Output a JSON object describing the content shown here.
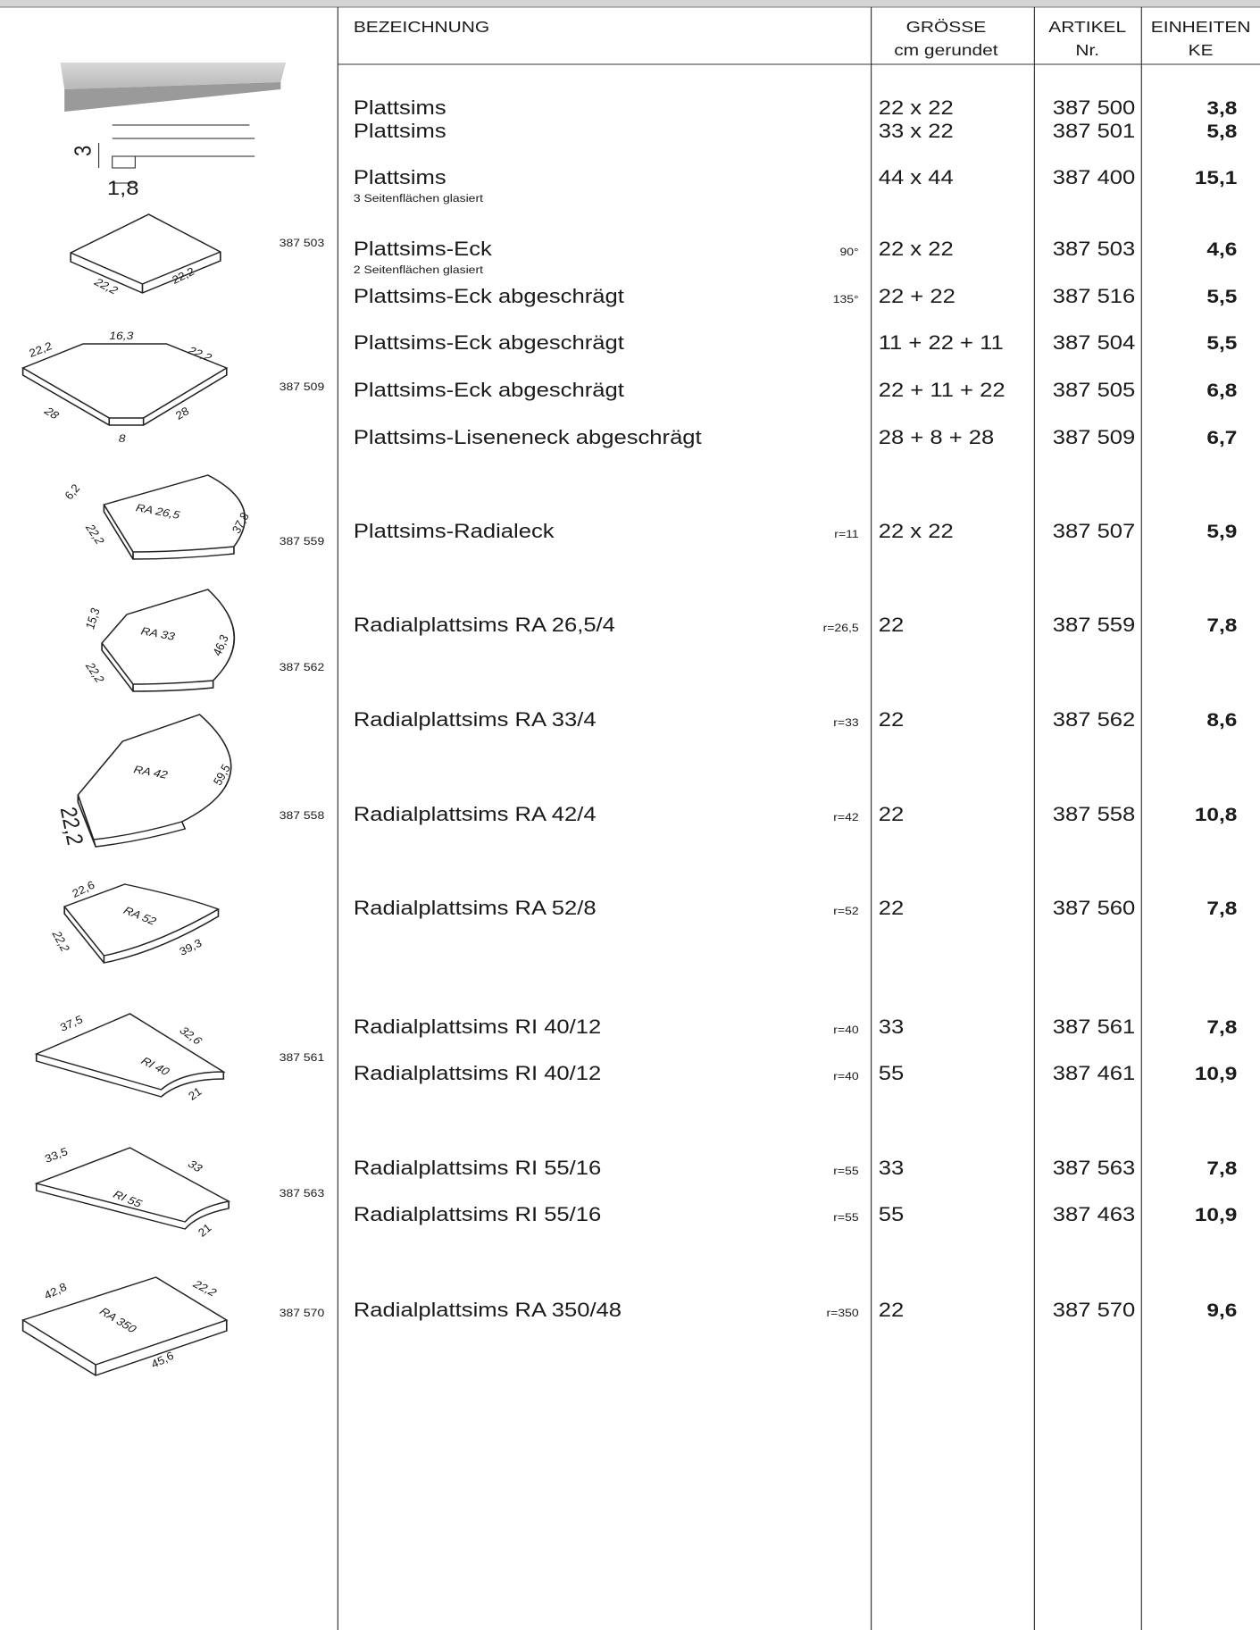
{
  "header": {
    "bezeichnung": "BEZEICHNUNG",
    "groesse": "GRÖSSE",
    "groesse_sub": "cm gerundet",
    "artikel": "ARTIKEL",
    "artikel_sub": "Nr.",
    "einheiten": "EINHEITEN",
    "einheiten_sub": "KE"
  },
  "rows": [
    {
      "name": "Plattsims",
      "size": "22 x 22",
      "article": "387 500",
      "ke": "3,8"
    },
    {
      "name": "Plattsims",
      "size": "33 x 22",
      "article": "387 501",
      "ke": "5,8"
    },
    {
      "name": "Plattsims",
      "note": "3 Seitenflächen glasiert",
      "size": "44 x 44",
      "article": "387 400",
      "ke": "15,1"
    },
    {
      "name": "Plattsims-Eck",
      "note": "2 Seitenflächen glasiert",
      "angle": "90°",
      "size": "22 x 22",
      "article": "387 503",
      "ke": "4,6"
    },
    {
      "name": "Plattsims-Eck abgeschrägt",
      "angle": "135°",
      "size": "22 + 22",
      "article": "387 516",
      "ke": "5,5"
    },
    {
      "name": "Plattsims-Eck abgeschrägt",
      "size": "11 + 22 + 11",
      "article": "387 504",
      "ke": "5,5"
    },
    {
      "name": "Plattsims-Eck abgeschrägt",
      "size": "22 + 11 + 22",
      "article": "387 505",
      "ke": "6,8"
    },
    {
      "name": "Plattsims-Liseneneck abgeschrägt",
      "size": "28 + 8 + 28",
      "article": "387 509",
      "ke": "6,7"
    },
    {
      "name": "Plattsims-Radialeck",
      "angle": "r=11",
      "size": "22 x 22",
      "article": "387 507",
      "ke": "5,9"
    },
    {
      "name": "Radialplattsims RA 26,5/4",
      "angle": "r=26,5",
      "size": "22",
      "article": "387 559",
      "ke": "7,8"
    },
    {
      "name": "Radialplattsims RA 33/4",
      "angle": "r=33",
      "size": "22",
      "article": "387 562",
      "ke": "8,6"
    },
    {
      "name": "Radialplattsims RA 42/4",
      "angle": "r=42",
      "size": "22",
      "article": "387 558",
      "ke": "10,8"
    },
    {
      "name": "Radialplattsims RA 52/8",
      "angle": "r=52",
      "size": "22",
      "article": "387 560",
      "ke": "7,8"
    },
    {
      "name": "Radialplattsims RI 40/12",
      "angle": "r=40",
      "size": "33",
      "article": "387 561",
      "ke": "7,8"
    },
    {
      "name": "Radialplattsims RI 40/12",
      "angle": "r=40",
      "size": "55",
      "article": "387 461",
      "ke": "10,9"
    },
    {
      "name": "Radialplattsims RI 55/16",
      "angle": "r=55",
      "size": "33",
      "article": "387 563",
      "ke": "7,8"
    },
    {
      "name": "Radialplattsims RI 55/16",
      "angle": "r=55",
      "size": "55",
      "article": "387 463",
      "ke": "10,9"
    },
    {
      "name": "Radialplattsims RA 350/48",
      "angle": "r=350",
      "size": "22",
      "article": "387 570",
      "ke": "9,6"
    }
  ],
  "drawings": [
    {
      "dims": [
        "3",
        "1,8"
      ]
    },
    {
      "article": "387 503",
      "dims": [
        "22,2",
        "22,2"
      ]
    },
    {
      "article": "387 509",
      "dims": [
        "16,3",
        "22,2",
        "22,2",
        "28",
        "28",
        "8"
      ]
    },
    {
      "article": "387 559",
      "dims": [
        "6,2",
        "RA 26,5",
        "22,2",
        "37,8"
      ]
    },
    {
      "article": "387 562",
      "dims": [
        "15,3",
        "RA 33",
        "22,2",
        "46,3"
      ]
    },
    {
      "article": "387 558",
      "dims": [
        "RA 42",
        "22,2",
        "59,5"
      ]
    },
    {
      "dims": [
        "22,6",
        "RA 52",
        "22,2",
        "39,3"
      ]
    },
    {
      "article": "387 561",
      "dims": [
        "37,5",
        "32,6",
        "RI 40",
        "21"
      ]
    },
    {
      "article": "387 563",
      "dims": [
        "33,5",
        "33",
        "RI 55",
        "21"
      ]
    },
    {
      "article": "387 570",
      "dims": [
        "42,8",
        "22,2",
        "RA 350",
        "45,6"
      ]
    }
  ]
}
